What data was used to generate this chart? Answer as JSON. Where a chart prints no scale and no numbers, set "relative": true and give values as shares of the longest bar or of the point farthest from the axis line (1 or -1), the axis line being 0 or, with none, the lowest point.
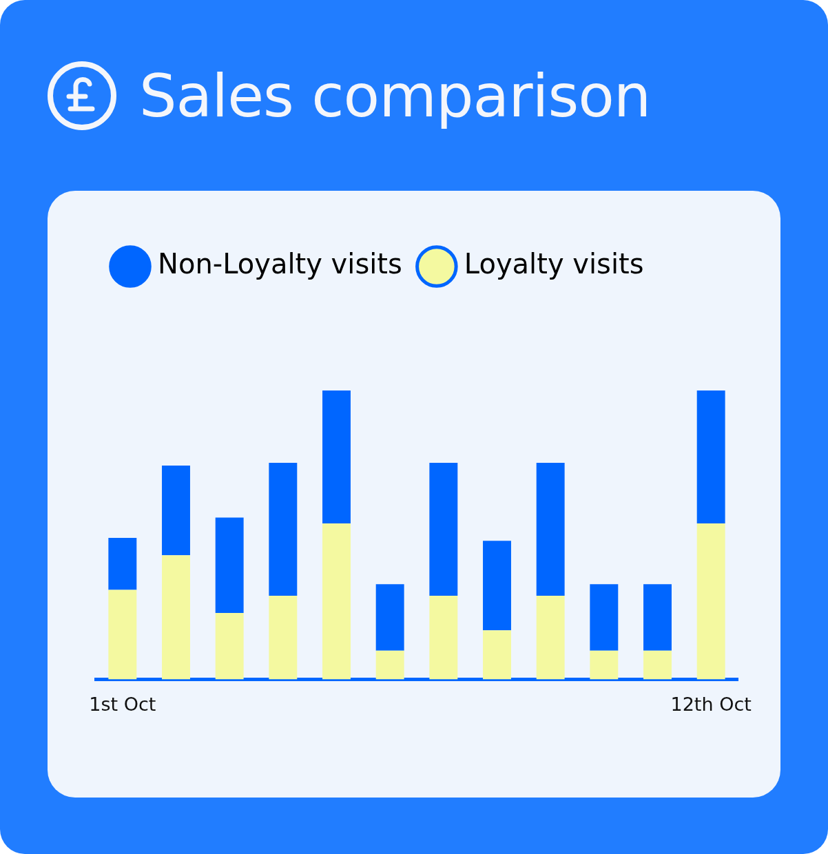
{
  "chart_data": {
    "type": "bar",
    "title": "Sales comparison",
    "relative": true,
    "stacked": true,
    "legend": "top left",
    "categories": [
      "1st Oct",
      null,
      null,
      null,
      null,
      null,
      null,
      null,
      null,
      null,
      null,
      "12th Oct"
    ],
    "series": [
      {
        "name": "Loyalty visits",
        "color": "#f4f9a0",
        "values": [
          0.31,
          0.43,
          0.23,
          0.29,
          0.54,
          0.1,
          0.29,
          0.17,
          0.29,
          0.1,
          0.1,
          0.54
        ]
      },
      {
        "name": "Non-Loyalty visits",
        "color": "#0066ff",
        "values": [
          0.18,
          0.31,
          0.33,
          0.46,
          0.46,
          0.23,
          0.46,
          0.31,
          0.46,
          0.23,
          0.23,
          0.46
        ]
      }
    ]
  }
}
